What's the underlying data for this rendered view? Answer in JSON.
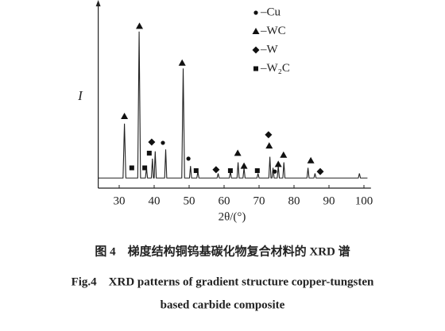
{
  "chart_data": {
    "type": "line",
    "x_label": "2θ/(°)",
    "y_label": "I",
    "xlim": [
      24,
      102
    ],
    "xticks": [
      30,
      40,
      50,
      60,
      70,
      80,
      90,
      100
    ],
    "ylim": [
      0,
      100
    ],
    "series": [
      {
        "color": "#222222",
        "x": [
          24,
          31.1,
          31.5,
          31.9,
          35.3,
          35.7,
          36.1,
          37.5,
          37.8,
          38.1,
          39.2,
          39.5,
          39.8,
          40.0,
          40.3,
          40.6,
          43.0,
          43.3,
          43.6,
          47.9,
          48.3,
          48.7,
          50.1,
          50.4,
          50.7,
          52.2,
          52.5,
          52.8,
          58.0,
          58.3,
          58.6,
          61.5,
          61.8,
          62.1,
          63.7,
          64.0,
          64.3,
          65.4,
          65.7,
          66.0,
          69.4,
          69.7,
          70.0,
          72.8,
          73.1,
          73.4,
          73.7,
          74.0,
          74.3,
          75.2,
          75.5,
          75.8,
          76.8,
          77.1,
          77.4,
          83.7,
          84.0,
          84.3,
          85.7,
          86.0,
          86.3,
          98.4,
          98.7,
          99.0,
          101
        ],
        "values": [
          5.5,
          5.5,
          35,
          5.5,
          5.5,
          85,
          5.5,
          5.5,
          11,
          5.5,
          5.5,
          16,
          5.5,
          5.5,
          20,
          5.5,
          5.5,
          21,
          5.5,
          5.5,
          65,
          5.5,
          5.5,
          12,
          5.5,
          5.5,
          9,
          5.5,
          5.5,
          8,
          5.5,
          5.5,
          9,
          5.5,
          5.5,
          14,
          5.5,
          5.5,
          11,
          5.5,
          5.5,
          8,
          5.5,
          5.5,
          17,
          5.5,
          5.5,
          11,
          5.5,
          5.5,
          12,
          5.5,
          5.5,
          14,
          5.5,
          5.5,
          11,
          5.5,
          5.5,
          8,
          5.5,
          5.5,
          8,
          5.5,
          5.5
        ]
      }
    ],
    "markers": [
      {
        "name": "–Cu",
        "symbol": "circle",
        "x": [
          42.5,
          49.8,
          74.5
        ],
        "values": [
          24.6,
          16,
          9
        ]
      },
      {
        "name": "–WC",
        "symbol": "triangle",
        "x": [
          31.5,
          35.8,
          48,
          63.9,
          65.7,
          72.9,
          75.5,
          77,
          84.8
        ],
        "values": [
          39,
          88,
          68,
          19,
          12,
          23,
          13,
          18,
          15
        ]
      },
      {
        "name": "–W",
        "symbol": "diamond",
        "x": [
          39.3,
          57.7,
          72.7,
          87.5
        ],
        "values": [
          25,
          10,
          29,
          9
        ]
      },
      {
        "name": "–W₂C",
        "symbol": "square",
        "x": [
          33.6,
          37.3,
          38.6,
          52,
          61.8,
          69.5
        ],
        "values": [
          11,
          11,
          19,
          9.5,
          9.5,
          9.5
        ]
      }
    ]
  },
  "caption": {
    "cn": "图 4　梯度结构铜钨基碳化物复合材料的 XRD 谱",
    "en_line1": "Fig.4　XRD patterns of gradient structure copper-tungsten",
    "en_line2": "based carbide composite"
  }
}
